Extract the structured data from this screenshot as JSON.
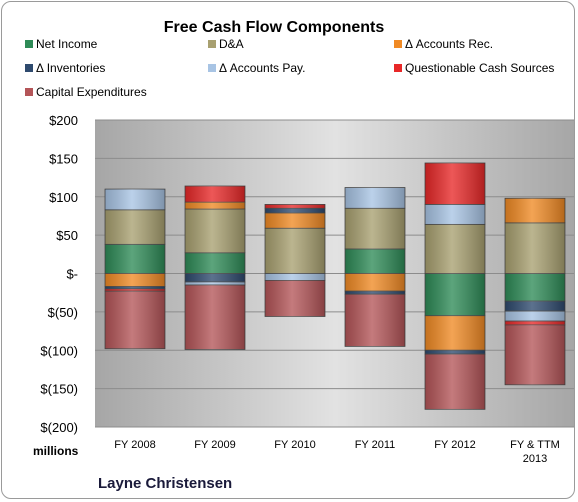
{
  "chart_data": {
    "type": "bar",
    "stacked": true,
    "title": "Free Cash Flow Components",
    "ylabel": "",
    "xlabel": "",
    "unit_label": "millions",
    "author": "Layne Christensen",
    "categories": [
      "FY 2008",
      "FY 2009",
      "FY 2010",
      "FY 2011",
      "FY 2012",
      "FY & TTM 2013"
    ],
    "ylim": [
      -200,
      200
    ],
    "yticks": [
      200,
      150,
      100,
      50,
      0,
      -50,
      -100,
      -150,
      -200
    ],
    "ytick_labels": [
      "$200",
      "$150",
      "$100",
      "$50",
      "$-",
      "$(50)",
      "$(100)",
      "$(150)",
      "$(200)"
    ],
    "grid": true,
    "legend_position": "top",
    "series": [
      {
        "name": "Net Income",
        "color": "#2e8b57",
        "values": [
          38,
          27,
          0,
          32,
          -55,
          -36
        ]
      },
      {
        "name": "D&A",
        "color": "#a8a070",
        "values": [
          45,
          57,
          59,
          53,
          64,
          66
        ]
      },
      {
        "name": "Δ Accounts Rec.",
        "color": "#f08a24",
        "values": [
          -17,
          9,
          20,
          -23,
          -45,
          32
        ]
      },
      {
        "name": "Δ Inventories",
        "color": "#2e4a6e",
        "values": [
          -3,
          -11,
          6,
          -4,
          -5,
          -13
        ]
      },
      {
        "name": "Δ Accounts Pay.",
        "color": "#a8c4e4",
        "values": [
          27,
          -4,
          -9,
          27,
          26,
          -13
        ]
      },
      {
        "name": "Questionable Cash Sources",
        "color": "#e82828",
        "values": [
          -3,
          21,
          5,
          0,
          54,
          -5
        ]
      },
      {
        "name": "Capital Expenditures",
        "color": "#b45558",
        "values": [
          -75,
          -84,
          -47,
          -68,
          -72,
          -78
        ]
      }
    ]
  }
}
